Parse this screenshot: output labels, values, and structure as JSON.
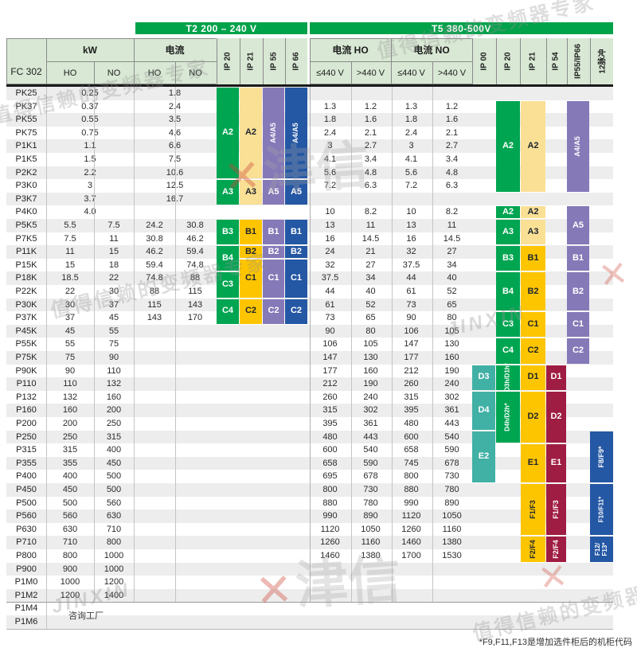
{
  "header": {
    "t2_band": "T2 200 – 240 V",
    "t5_band": "T5 380-500V",
    "fc302": "FC 302",
    "kw": "kW",
    "current_t2": "电流",
    "current_ho_t5": "电流 HO",
    "current_no_t5": "电流 NO",
    "ho": "HO",
    "no": "NO",
    "le440": "≤440 V",
    "gt440": ">440 V",
    "t2_ip": [
      "IP 20",
      "IP 21",
      "IP 55",
      "IP 66"
    ],
    "t5_ip": [
      "IP 00",
      "IP 20",
      "IP 21",
      "IP 54",
      "IP55/IP66",
      "12脉冲"
    ]
  },
  "rows": [
    {
      "m": "PK25",
      "kw": [
        "0.25"
      ],
      "t2": [
        "1.8"
      ],
      "t5": []
    },
    {
      "m": "PK37",
      "kw": [
        "0.37"
      ],
      "t2": [
        "2.4"
      ],
      "t5": [
        "1.3",
        "1.2",
        "1.3",
        "1.2"
      ]
    },
    {
      "m": "PK55",
      "kw": [
        "0.55"
      ],
      "t2": [
        "3.5"
      ],
      "t5": [
        "1.8",
        "1.6",
        "1.8",
        "1.6"
      ]
    },
    {
      "m": "PK75",
      "kw": [
        "0.75"
      ],
      "t2": [
        "4.6"
      ],
      "t5": [
        "2.4",
        "2.1",
        "2.4",
        "2.1"
      ]
    },
    {
      "m": "P1K1",
      "kw": [
        "1.1"
      ],
      "t2": [
        "6.6"
      ],
      "t5": [
        "3",
        "2.7",
        "3",
        "2.7"
      ]
    },
    {
      "m": "P1K5",
      "kw": [
        "1.5"
      ],
      "t2": [
        "7.5"
      ],
      "t5": [
        "4.1",
        "3.4",
        "4.1",
        "3.4"
      ]
    },
    {
      "m": "P2K2",
      "kw": [
        "2.2"
      ],
      "t2": [
        "10.6"
      ],
      "t5": [
        "5.6",
        "4.8",
        "5.6",
        "4.8"
      ]
    },
    {
      "m": "P3K0",
      "kw": [
        "3"
      ],
      "t2": [
        "12.5"
      ],
      "t5": [
        "7.2",
        "6.3",
        "7.2",
        "6.3"
      ]
    },
    {
      "m": "P3K7",
      "kw": [
        "3.7"
      ],
      "t2": [
        "16.7"
      ],
      "t5": []
    },
    {
      "m": "P4K0",
      "kw": [
        "4.0"
      ],
      "t2": [],
      "t5": [
        "10",
        "8.2",
        "10",
        "8.2"
      ]
    },
    {
      "m": "P5K5",
      "kw": [
        "5.5",
        "7.5"
      ],
      "t2": [
        "24.2",
        "30.8"
      ],
      "t5": [
        "13",
        "11",
        "13",
        "11"
      ]
    },
    {
      "m": "P7K5",
      "kw": [
        "7.5",
        "11"
      ],
      "t2": [
        "30.8",
        "46.2"
      ],
      "t5": [
        "16",
        "14.5",
        "16",
        "14.5"
      ]
    },
    {
      "m": "P11K",
      "kw": [
        "11",
        "15"
      ],
      "t2": [
        "46.2",
        "59.4"
      ],
      "t5": [
        "24",
        "21",
        "32",
        "27"
      ]
    },
    {
      "m": "P15K",
      "kw": [
        "15",
        "18"
      ],
      "t2": [
        "59.4",
        "74.8"
      ],
      "t5": [
        "32",
        "27",
        "37.5",
        "34"
      ]
    },
    {
      "m": "P18K",
      "kw": [
        "18.5",
        "22"
      ],
      "t2": [
        "74.8",
        "88"
      ],
      "t5": [
        "37.5",
        "34",
        "44",
        "40"
      ]
    },
    {
      "m": "P22K",
      "kw": [
        "22",
        "30"
      ],
      "t2": [
        "88",
        "115"
      ],
      "t5": [
        "44",
        "40",
        "61",
        "52"
      ]
    },
    {
      "m": "P30K",
      "kw": [
        "30",
        "37"
      ],
      "t2": [
        "115",
        "143"
      ],
      "t5": [
        "61",
        "52",
        "73",
        "65"
      ]
    },
    {
      "m": "P37K",
      "kw": [
        "37",
        "45"
      ],
      "t2": [
        "143",
        "170"
      ],
      "t5": [
        "73",
        "65",
        "90",
        "80"
      ]
    },
    {
      "m": "P45K",
      "kw": [
        "45",
        "55"
      ],
      "t2": [],
      "t5": [
        "90",
        "80",
        "106",
        "105"
      ]
    },
    {
      "m": "P55K",
      "kw": [
        "55",
        "75"
      ],
      "t2": [],
      "t5": [
        "106",
        "105",
        "147",
        "130"
      ]
    },
    {
      "m": "P75K",
      "kw": [
        "75",
        "90"
      ],
      "t2": [],
      "t5": [
        "147",
        "130",
        "177",
        "160"
      ]
    },
    {
      "m": "P90K",
      "kw": [
        "90",
        "110"
      ],
      "t2": [],
      "t5": [
        "177",
        "160",
        "212",
        "190"
      ]
    },
    {
      "m": "P110",
      "kw": [
        "110",
        "132"
      ],
      "t2": [],
      "t5": [
        "212",
        "190",
        "260",
        "240"
      ]
    },
    {
      "m": "P132",
      "kw": [
        "132",
        "160"
      ],
      "t2": [],
      "t5": [
        "260",
        "240",
        "315",
        "302"
      ]
    },
    {
      "m": "P160",
      "kw": [
        "160",
        "200"
      ],
      "t2": [],
      "t5": [
        "315",
        "302",
        "395",
        "361"
      ]
    },
    {
      "m": "P200",
      "kw": [
        "200",
        "250"
      ],
      "t2": [],
      "t5": [
        "395",
        "361",
        "480",
        "443"
      ]
    },
    {
      "m": "P250",
      "kw": [
        "250",
        "315"
      ],
      "t2": [],
      "t5": [
        "480",
        "443",
        "600",
        "540"
      ]
    },
    {
      "m": "P315",
      "kw": [
        "315",
        "400"
      ],
      "t2": [],
      "t5": [
        "600",
        "540",
        "658",
        "590"
      ]
    },
    {
      "m": "P355",
      "kw": [
        "355",
        "450"
      ],
      "t2": [],
      "t5": [
        "658",
        "590",
        "745",
        "678"
      ]
    },
    {
      "m": "P400",
      "kw": [
        "400",
        "500"
      ],
      "t2": [],
      "t5": [
        "695",
        "678",
        "800",
        "730"
      ]
    },
    {
      "m": "P450",
      "kw": [
        "450",
        "500"
      ],
      "t2": [],
      "t5": [
        "800",
        "730",
        "880",
        "780"
      ]
    },
    {
      "m": "P500",
      "kw": [
        "500",
        "560"
      ],
      "t2": [],
      "t5": [
        "880",
        "780",
        "990",
        "890"
      ]
    },
    {
      "m": "P560",
      "kw": [
        "560",
        "630"
      ],
      "t2": [],
      "t5": [
        "990",
        "890",
        "1120",
        "1050"
      ]
    },
    {
      "m": "P630",
      "kw": [
        "630",
        "710"
      ],
      "t2": [],
      "t5": [
        "1120",
        "1050",
        "1260",
        "1160"
      ]
    },
    {
      "m": "P710",
      "kw": [
        "710",
        "800"
      ],
      "t2": [],
      "t5": [
        "1260",
        "1160",
        "1460",
        "1380"
      ]
    },
    {
      "m": "P800",
      "kw": [
        "800",
        "1000"
      ],
      "t2": [],
      "t5": [
        "1460",
        "1380",
        "1700",
        "1530"
      ]
    },
    {
      "m": "P900",
      "kw": [
        "900",
        "1000"
      ],
      "t2": [],
      "t5": []
    },
    {
      "m": "P1M0",
      "kw": [
        "1000",
        "1200"
      ],
      "t2": [],
      "t5": []
    },
    {
      "m": "P1M2",
      "kw": [
        "1200",
        "1400"
      ],
      "t2": [],
      "t5": []
    },
    {
      "m": "P1M4",
      "kw": [],
      "t2": [],
      "t5": []
    },
    {
      "m": "P1M6",
      "kw": [],
      "t2": [],
      "t5": []
    }
  ],
  "frames": [
    {
      "c": "t2_ip20",
      "l": "A2",
      "r": 1,
      "s": 7,
      "k": "green"
    },
    {
      "c": "t2_ip20",
      "l": "A3",
      "r": 8,
      "s": 2,
      "k": "green"
    },
    {
      "c": "t2_ip20",
      "l": "B3",
      "r": 11,
      "s": 2,
      "k": "green"
    },
    {
      "c": "t2_ip20",
      "l": "B4",
      "r": 13,
      "s": 2,
      "k": "green"
    },
    {
      "c": "t2_ip20",
      "l": "C3",
      "r": 15,
      "s": 2,
      "k": "green"
    },
    {
      "c": "t2_ip20",
      "l": "C4",
      "r": 17,
      "s": 2,
      "k": "green"
    },
    {
      "c": "t2_ip21",
      "l": "A2",
      "r": 1,
      "s": 7,
      "k": "light_yellow"
    },
    {
      "c": "t2_ip21",
      "l": "A3",
      "r": 8,
      "s": 2,
      "k": "light_yellow"
    },
    {
      "c": "t2_ip21",
      "l": "B1",
      "r": 11,
      "s": 2,
      "k": "gold"
    },
    {
      "c": "t2_ip21",
      "l": "B2",
      "r": 13,
      "s": 1,
      "k": "gold"
    },
    {
      "c": "t2_ip21",
      "l": "C1",
      "r": 14,
      "s": 3,
      "k": "gold"
    },
    {
      "c": "t2_ip21",
      "l": "C2",
      "r": 17,
      "s": 2,
      "k": "gold"
    },
    {
      "c": "t2_ip55",
      "l": "A4/A5",
      "r": 1,
      "s": 7,
      "k": "purple",
      "v": true
    },
    {
      "c": "t2_ip55",
      "l": "A5",
      "r": 8,
      "s": 2,
      "k": "purple"
    },
    {
      "c": "t2_ip55",
      "l": "B1",
      "r": 11,
      "s": 2,
      "k": "purple"
    },
    {
      "c": "t2_ip55",
      "l": "B2",
      "r": 13,
      "s": 1,
      "k": "purple"
    },
    {
      "c": "t2_ip55",
      "l": "C1",
      "r": 14,
      "s": 3,
      "k": "purple"
    },
    {
      "c": "t2_ip55",
      "l": "C2",
      "r": 17,
      "s": 2,
      "k": "purple"
    },
    {
      "c": "t2_ip66",
      "l": "A4/A5",
      "r": 1,
      "s": 7,
      "k": "blue",
      "v": true
    },
    {
      "c": "t2_ip66",
      "l": "A5",
      "r": 8,
      "s": 2,
      "k": "blue"
    },
    {
      "c": "t2_ip66",
      "l": "B1",
      "r": 11,
      "s": 2,
      "k": "blue"
    },
    {
      "c": "t2_ip66",
      "l": "B2",
      "r": 13,
      "s": 1,
      "k": "blue"
    },
    {
      "c": "t2_ip66",
      "l": "C1",
      "r": 14,
      "s": 3,
      "k": "blue"
    },
    {
      "c": "t2_ip66",
      "l": "C2",
      "r": 17,
      "s": 2,
      "k": "blue"
    },
    {
      "c": "t5_ip00",
      "l": "D3",
      "r": 22,
      "s": 2,
      "k": "teal"
    },
    {
      "c": "t5_ip00",
      "l": "D4",
      "r": 24,
      "s": 3,
      "k": "teal"
    },
    {
      "c": "t5_ip00",
      "l": "E2",
      "r": 27,
      "s": 4,
      "k": "teal"
    },
    {
      "c": "t5_ip20",
      "l": "A2",
      "r": 2,
      "s": 7,
      "k": "green"
    },
    {
      "c": "t5_ip20",
      "l": "A2",
      "r": 10,
      "s": 1,
      "k": "green"
    },
    {
      "c": "t5_ip20",
      "l": "A3",
      "r": 11,
      "s": 2,
      "k": "green"
    },
    {
      "c": "t5_ip20",
      "l": "B3",
      "r": 13,
      "s": 2,
      "k": "green"
    },
    {
      "c": "t5_ip20",
      "l": "B4",
      "r": 15,
      "s": 3,
      "k": "green"
    },
    {
      "c": "t5_ip20",
      "l": "C3",
      "r": 18,
      "s": 2,
      "k": "green"
    },
    {
      "c": "t5_ip20",
      "l": "C4",
      "r": 20,
      "s": 2,
      "k": "green"
    },
    {
      "c": "t5_ip20",
      "l": "D3h/D1h*",
      "r": 22,
      "s": 2,
      "k": "green",
      "v": true
    },
    {
      "c": "t5_ip20",
      "l": "D4h/D2h*",
      "r": 24,
      "s": 4,
      "k": "green",
      "v": true
    },
    {
      "c": "t5_ip21",
      "l": "A2",
      "r": 2,
      "s": 7,
      "k": "light_yellow"
    },
    {
      "c": "t5_ip21",
      "l": "A2",
      "r": 10,
      "s": 1,
      "k": "light_yellow"
    },
    {
      "c": "t5_ip21",
      "l": "A3",
      "r": 11,
      "s": 2,
      "k": "light_yellow"
    },
    {
      "c": "t5_ip21",
      "l": "B1",
      "r": 13,
      "s": 2,
      "k": "gold"
    },
    {
      "c": "t5_ip21",
      "l": "B2",
      "r": 15,
      "s": 3,
      "k": "gold"
    },
    {
      "c": "t5_ip21",
      "l": "C1",
      "r": 18,
      "s": 2,
      "k": "gold"
    },
    {
      "c": "t5_ip21",
      "l": "C2",
      "r": 20,
      "s": 2,
      "k": "gold"
    },
    {
      "c": "t5_ip21",
      "l": "D1",
      "r": 22,
      "s": 2,
      "k": "gold"
    },
    {
      "c": "t5_ip21",
      "l": "D2",
      "r": 24,
      "s": 4,
      "k": "gold"
    },
    {
      "c": "t5_ip21",
      "l": "E1",
      "r": 28,
      "s": 3,
      "k": "gold"
    },
    {
      "c": "t5_ip21",
      "l": "F1/F3",
      "r": 31,
      "s": 4,
      "k": "gold",
      "v": true
    },
    {
      "c": "t5_ip21",
      "l": "F2/F4",
      "r": 35,
      "s": 2,
      "k": "gold",
      "v": true
    },
    {
      "c": "t5_ip54",
      "l": "D1",
      "r": 22,
      "s": 2,
      "k": "maroon"
    },
    {
      "c": "t5_ip54",
      "l": "D2",
      "r": 24,
      "s": 4,
      "k": "maroon"
    },
    {
      "c": "t5_ip54",
      "l": "E1",
      "r": 28,
      "s": 3,
      "k": "maroon"
    },
    {
      "c": "t5_ip54",
      "l": "F1/F3",
      "r": 31,
      "s": 4,
      "k": "maroon",
      "v": true
    },
    {
      "c": "t5_ip54",
      "l": "F2/F4",
      "r": 35,
      "s": 2,
      "k": "maroon",
      "v": true
    },
    {
      "c": "t5_ip5566",
      "l": "A4/A5",
      "r": 2,
      "s": 7,
      "k": "purple",
      "v": true
    },
    {
      "c": "t5_ip5566",
      "l": "A5",
      "r": 10,
      "s": 3,
      "k": "purple"
    },
    {
      "c": "t5_ip5566",
      "l": "B1",
      "r": 13,
      "s": 2,
      "k": "purple"
    },
    {
      "c": "t5_ip5566",
      "l": "B2",
      "r": 15,
      "s": 3,
      "k": "purple"
    },
    {
      "c": "t5_ip5566",
      "l": "C1",
      "r": 18,
      "s": 2,
      "k": "purple"
    },
    {
      "c": "t5_ip5566",
      "l": "C2",
      "r": 20,
      "s": 2,
      "k": "purple"
    },
    {
      "c": "t5_p12",
      "l": "F8/F9*",
      "r": 27,
      "s": 4,
      "k": "blue",
      "v": true
    },
    {
      "c": "t5_p12",
      "l": "F10/F11*",
      "r": 31,
      "s": 4,
      "k": "blue",
      "v": true
    },
    {
      "c": "t5_p12",
      "l": "F12/\nF13*",
      "r": 35,
      "s": 2,
      "k": "blue",
      "v": true
    }
  ],
  "consult_note": "咨询工厂",
  "footnote": "*F9,F11,F13是增加选件柜后的机柜代码",
  "colors": {
    "band_green": "#00a24a",
    "header_bg": "#d8e8d4",
    "green": "#00a551",
    "light_yellow": "#f9e095",
    "gold": "#fdc500",
    "purple": "#8679b8",
    "blue": "#2457a4",
    "teal": "#41b0a5",
    "maroon": "#9f1c42"
  },
  "watermark": {
    "slogan": "值得信赖的变频器专家",
    "brand": "津信",
    "latin": "JINXIN"
  }
}
